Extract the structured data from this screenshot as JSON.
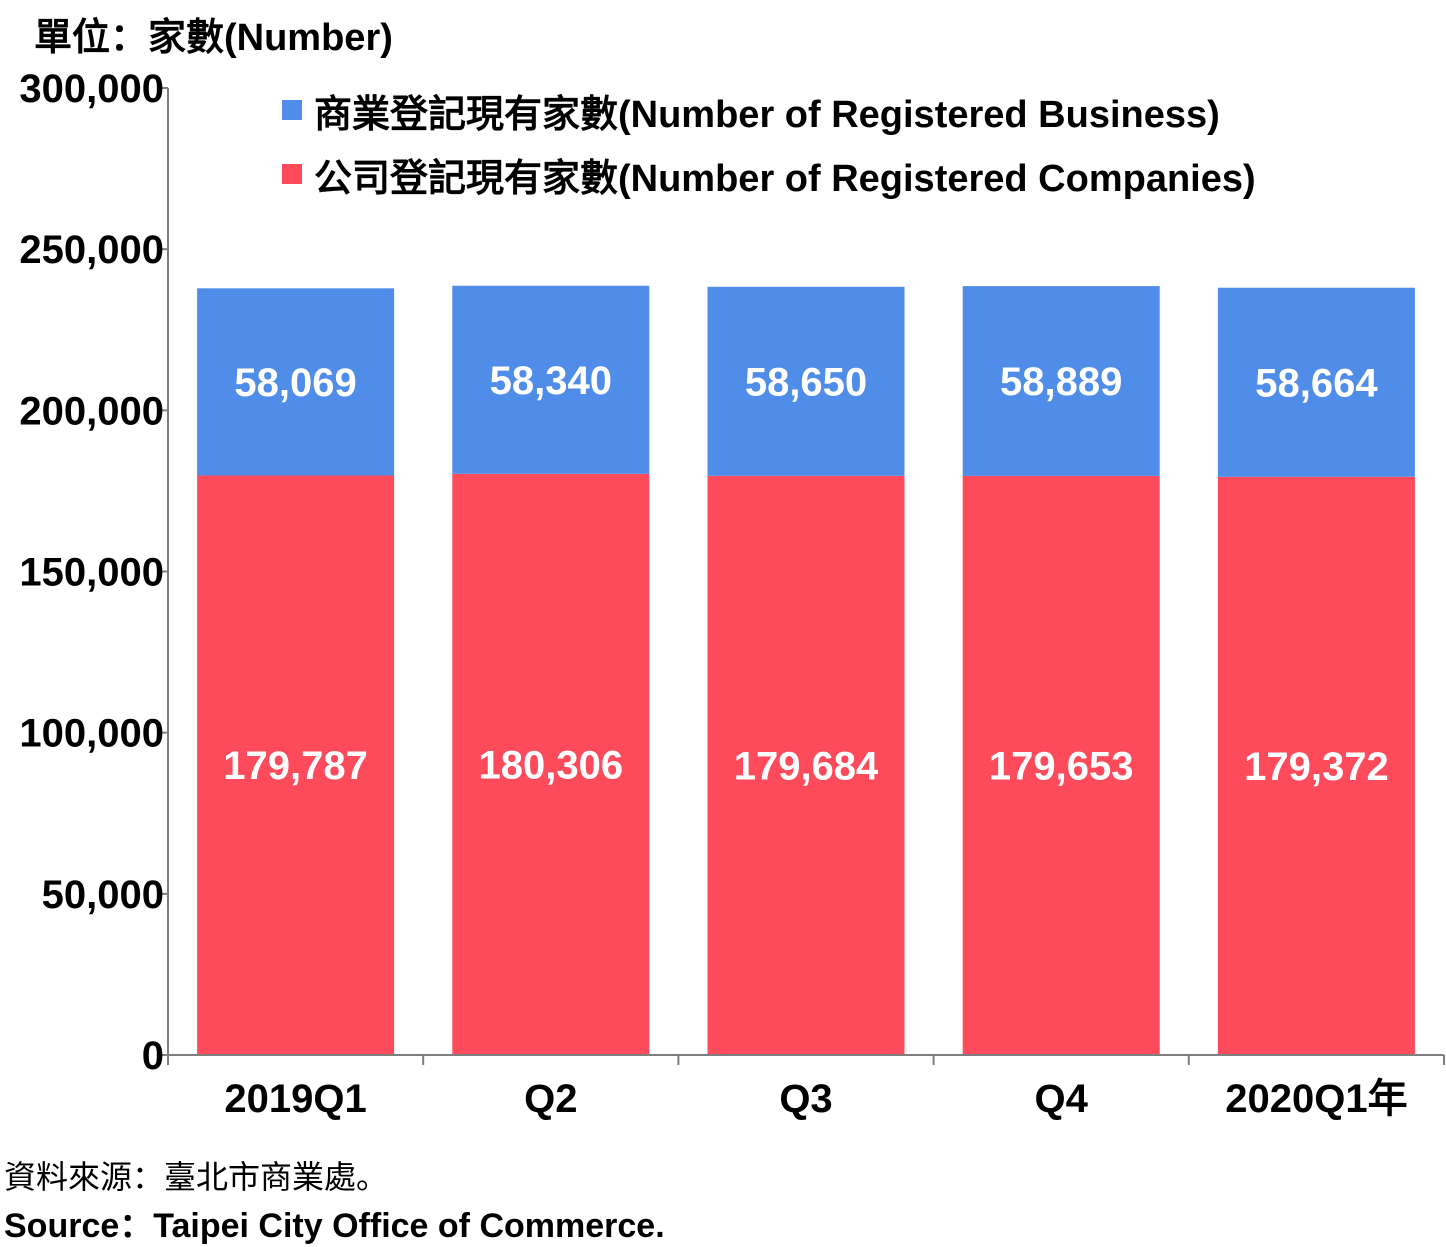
{
  "unit_label": "單位：家數(Number)",
  "source_zh": "資料來源：臺北市商業處。",
  "source_en": "Source：Taipei City Office of Commerce.",
  "colors": {
    "business": "#4f8de8",
    "companies": "#fe4b5c",
    "axis": "#7f7f7f"
  },
  "chart_data": {
    "type": "bar",
    "stacked": true,
    "categories": [
      "2019Q1",
      "Q2",
      "Q3",
      "Q4",
      "2020Q1年"
    ],
    "series": [
      {
        "name": "公司登記現有家數(Number of Registered Companies)",
        "values": [
          179787,
          180306,
          179684,
          179653,
          179372
        ]
      },
      {
        "name": "商業登記現有家數(Number of Registered Business)",
        "values": [
          58069,
          58340,
          58650,
          58889,
          58664
        ]
      }
    ],
    "value_labels": {
      "companies": [
        "179,787",
        "180,306",
        "179,684",
        "179,653",
        "179,372"
      ],
      "business": [
        "58,069",
        "58,340",
        "58,650",
        "58,889",
        "58,664"
      ]
    },
    "y_ticks": [
      0,
      50000,
      100000,
      150000,
      200000,
      250000,
      300000
    ],
    "y_tick_labels": [
      "0",
      "50,000",
      "100,000",
      "150,000",
      "200,000",
      "250,000",
      "300,000"
    ],
    "ylim": [
      0,
      300000
    ],
    "legend_position": "top-center"
  }
}
